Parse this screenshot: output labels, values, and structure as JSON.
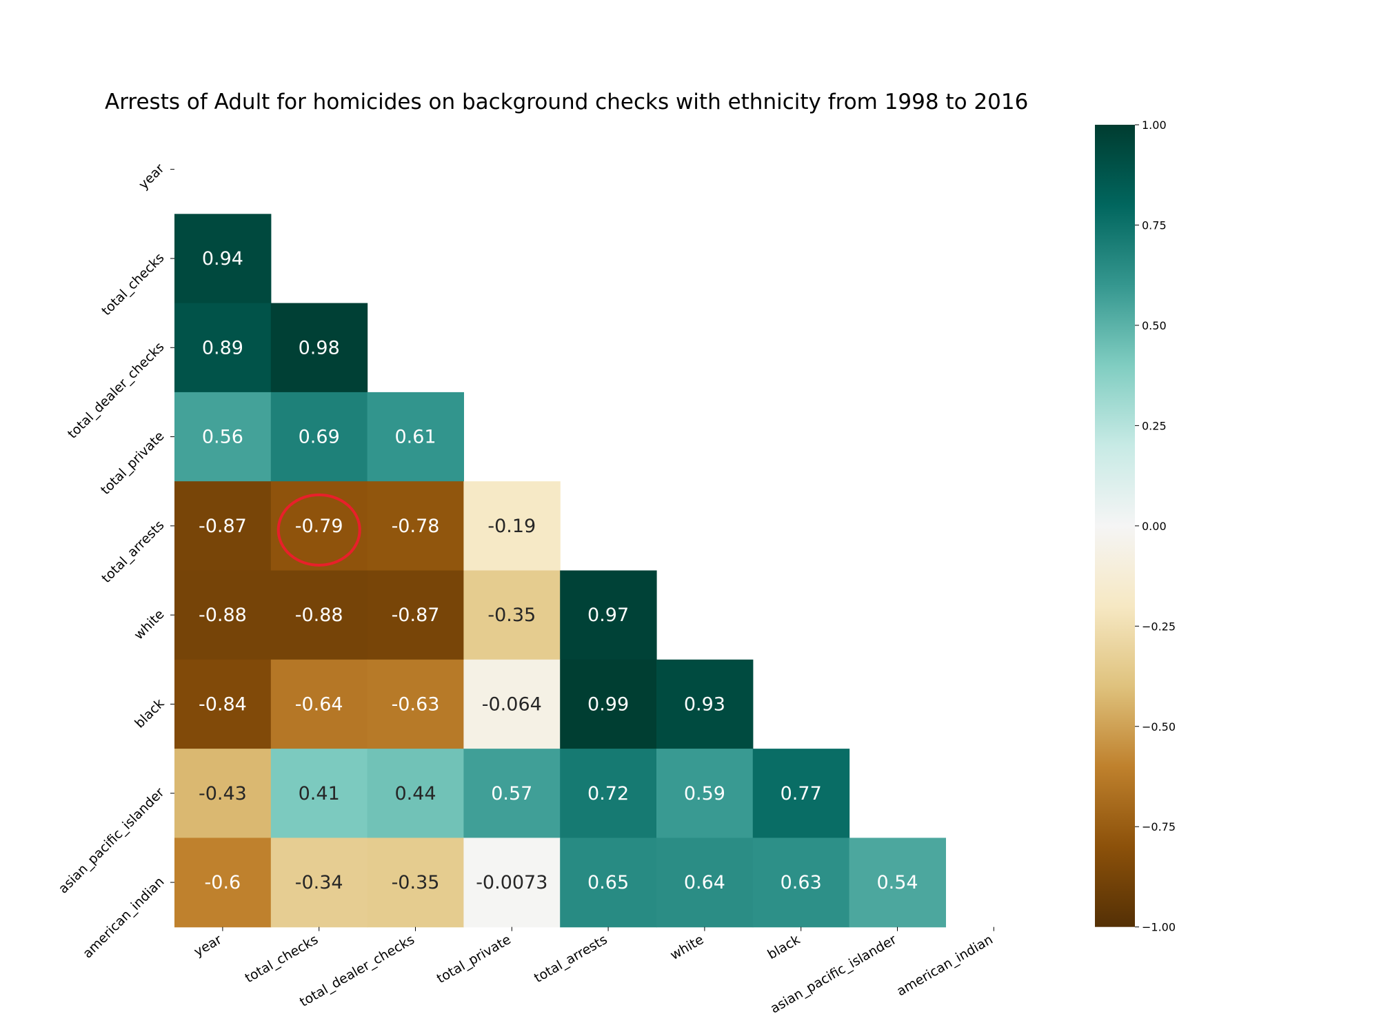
{
  "chart_data": {
    "type": "heatmap",
    "title": "Arrests of Adult for homicides on background checks with ethnicity from 1998 to 2016",
    "variables": [
      "year",
      "total_checks",
      "total_dealer_checks",
      "total_private",
      "total_arrests",
      "white",
      "black",
      "asian_pacific_islander",
      "american_indian"
    ],
    "matrix": [
      [],
      [
        "0.94"
      ],
      [
        "0.89",
        "0.98"
      ],
      [
        "0.56",
        "0.69",
        "0.61"
      ],
      [
        "-0.87",
        "-0.79",
        "-0.78",
        "-0.19"
      ],
      [
        "-0.88",
        "-0.88",
        "-0.87",
        "-0.35",
        "0.97"
      ],
      [
        "-0.84",
        "-0.64",
        "-0.63",
        "-0.064",
        "0.99",
        "0.93"
      ],
      [
        "-0.43",
        "0.41",
        "0.44",
        "0.57",
        "0.72",
        "0.59",
        "0.77"
      ],
      [
        "-0.6",
        "-0.34",
        "-0.35",
        "-0.0073",
        "0.65",
        "0.64",
        "0.63",
        "0.54"
      ]
    ],
    "mask": "upper triangle including diagonal",
    "colormap": "BrBG",
    "colorbar": {
      "range": [
        -1.0,
        1.0
      ],
      "ticks": [
        "1.00",
        "0.75",
        "0.50",
        "0.25",
        "0.00",
        "−0.25",
        "−0.50",
        "−0.75",
        "−1.00"
      ]
    },
    "highlight": {
      "row": 4,
      "col": 1,
      "shape": "ellipse",
      "color": "#e8202a"
    }
  }
}
